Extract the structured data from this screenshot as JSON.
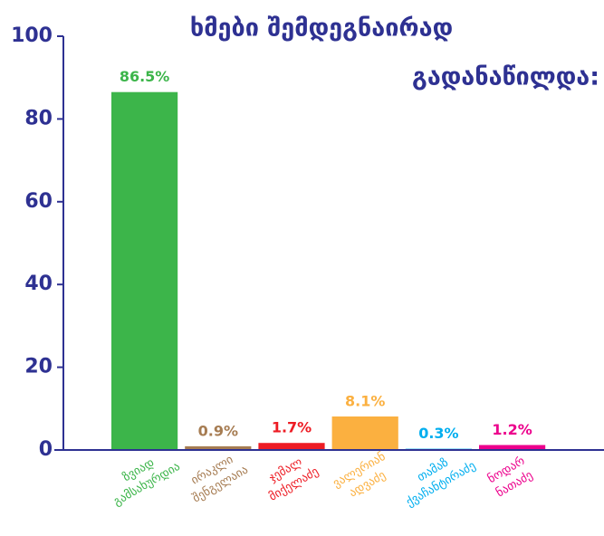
{
  "chart_data": {
    "type": "bar",
    "title": [
      "ხმები შემდეგნაირად",
      "გადანაწილდა:"
    ],
    "categories": [
      [
        "ზვიად",
        "გამსახურდია"
      ],
      [
        "ირაკლი",
        "შენგელაია"
      ],
      [
        "ჯემალ",
        "მიქელაძე"
      ],
      [
        "ვალერიან",
        "ადვაძე"
      ],
      [
        "თამაზ",
        "ქვაჩანტირაძე"
      ],
      [
        "ნოდარ",
        "ნათაძე"
      ]
    ],
    "values": [
      86.5,
      0.9,
      1.7,
      8.1,
      0.3,
      1.2
    ],
    "value_labels": [
      "86.5%",
      "0.9%",
      "1.7%",
      "8.1%",
      "0.3%",
      "1.2%"
    ],
    "colors": [
      "#3cb54a",
      "#a67c52",
      "#ed1c24",
      "#fbb040",
      "#00aeef",
      "#ec008c"
    ],
    "ylim": [
      0,
      100
    ],
    "yticks": [
      0,
      20,
      40,
      60,
      80,
      100
    ],
    "grid": false
  }
}
